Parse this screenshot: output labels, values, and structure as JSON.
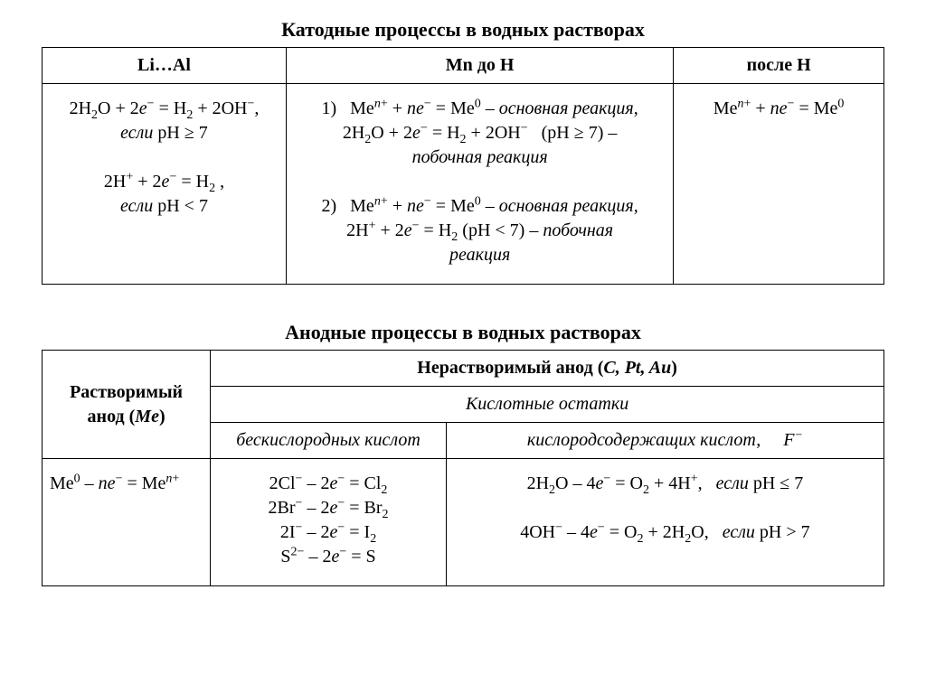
{
  "layout": {
    "background_color": "#ffffff",
    "text_color": "#000000",
    "border_color": "#000000",
    "font_family": "Times New Roman",
    "title_fontsize": 22,
    "body_fontsize": 20
  },
  "table1": {
    "title": "Катодные процессы в водных растворах",
    "columns": [
      "Li…Al",
      "Mn до H",
      "после H"
    ],
    "column_widths_pct": [
      29,
      46,
      25
    ],
    "cells": {
      "c1_line1_html": "2H<sub>2</sub>O + 2<span class='ital'>e</span><sup>&minus;</sup> = H<sub>2</sub> + 2OH<sup>&minus;</sup>,",
      "c1_cond1_html": "<span class='ital'>если</span> pH &ge; 7",
      "c1_line2_html": "2H<sup>+</sup> + 2<span class='ital'>e</span><sup>&minus;</sup> = H<sub>2</sub> ,",
      "c1_cond2_html": "<span class='ital'>если</span> pH &lt; 7",
      "c2_l1_html": "1)&nbsp;&nbsp;&nbsp;Me<sup><span class='ital'>n</span>+</sup> + <span class='ital'>n</span><span class='ital'>e</span><sup>&minus;</sup> = Me<sup>0</sup> &ndash; <span class='ital'>основная реакция</span>,",
      "c2_l2_html": "2H<sub>2</sub>O + 2<span class='ital'>e</span><sup>&minus;</sup> = H<sub>2</sub> + 2OH<sup>&minus;</sup> &nbsp; (pH &ge; 7) &ndash;",
      "c2_l3_html": "<span class='ital'>побочная реакция</span>",
      "c2_l4_html": "2)&nbsp;&nbsp;&nbsp;Me<sup><span class='ital'>n</span>+</sup> + <span class='ital'>n</span><span class='ital'>e</span><sup>&minus;</sup> = Me<sup>0</sup> &ndash; <span class='ital'>основная реакция</span>,",
      "c2_l5_html": "2H<sup>+</sup> + 2<span class='ital'>e</span><sup>&minus;</sup> = H<sub>2</sub> (pH &lt; 7) &ndash; <span class='ital'>побочная</span>",
      "c2_l6_html": "<span class='ital'>реакция</span>",
      "c3_html": "Me<sup><span class='ital'>n</span>+</sup> + <span class='ital'>n</span><span class='ital'>e</span><sup>&minus;</sup> = Me<sup>0</sup>"
    }
  },
  "table2": {
    "title": "Анодные процессы в водных растворах",
    "column_widths_pct": [
      20,
      28,
      52
    ],
    "h_soluble_html": "Растворимый анод (<span class='ital'>Me</span>)",
    "h_insoluble_html": "Нерастворимый анод (<span class='ital'>C, Pt, Au</span>)",
    "h_acid_residues": "Кислотные остатки",
    "h_oxygen_free": "бескислородных кислот",
    "h_oxygen_containing_html": "кислородсодержащих кислот,&nbsp;&nbsp;&nbsp;&nbsp;&nbsp;F<sup>&minus;</sup>",
    "cells": {
      "c1_html": "Me<sup>0</sup> &ndash; <span class='ital'>n</span><span class='ital'>e</span><sup>&minus;</sup> = Me<sup><span class='ital'>n</span>+</sup>",
      "c2_l1_html": "2Cl<sup>&minus;</sup> &ndash; 2<span class='ital'>e</span><sup>&minus;</sup> = Cl<sub>2</sub>",
      "c2_l2_html": "2Br<sup>&minus;</sup> &ndash; 2<span class='ital'>e</span><sup>&minus;</sup> = Br<sub>2</sub>",
      "c2_l3_html": "2I<sup>&minus;</sup> &ndash; 2<span class='ital'>e</span><sup>&minus;</sup> = I<sub>2</sub>",
      "c2_l4_html": "S<sup>2&minus;</sup> &ndash; 2<span class='ital'>e</span><sup>&minus;</sup> = S",
      "c3_l1_html": "2H<sub>2</sub>O &ndash; 4<span class='ital'>e</span><sup>&minus;</sup> = O<sub>2</sub> + 4H<sup>+</sup>,&nbsp;&nbsp;&nbsp;<span class='ital'>если</span> pH &le; 7",
      "c3_l2_html": "4OH<sup>&minus;</sup> &ndash; 4<span class='ital'>e</span><sup>&minus;</sup> = O<sub>2</sub> + 2H<sub>2</sub>O,&nbsp;&nbsp;&nbsp;<span class='ital'>если</span> pH &gt; 7"
    }
  }
}
